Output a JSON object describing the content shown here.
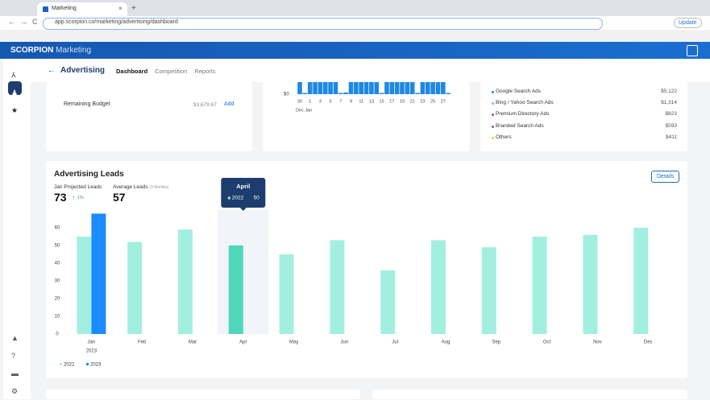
{
  "browser": {
    "tab_title": "Marketing",
    "url": "app.scorpion.co/marketing/advertising/dashboard",
    "update": "Update"
  },
  "app": {
    "brand": "SCORPION",
    "brand_sub": "Marketing"
  },
  "nav": {
    "title": "Advertising",
    "tabs": [
      "Dashboard",
      "Competition",
      "Reports"
    ]
  },
  "budget": {
    "label": "Remaining Budget",
    "value": "$3,679.67",
    "action": "Add"
  },
  "spend_chart": {
    "zero_label": "$0",
    "x_labels": [
      "30",
      "1",
      "3",
      "5",
      "7",
      "9",
      "11",
      "13",
      "15",
      "17",
      "19",
      "21",
      "23",
      "25",
      "27"
    ],
    "month_labels": "Dec Jan",
    "color": "#1e88e5",
    "values": [
      60,
      6,
      60,
      60,
      60,
      60,
      60,
      60,
      6,
      8,
      60,
      60,
      60,
      60,
      60,
      60,
      6,
      60,
      60,
      60,
      60,
      60,
      60,
      6,
      60,
      60,
      60,
      60,
      60,
      6
    ]
  },
  "sources": [
    {
      "name": "Google Search Ads",
      "value": "$5,122",
      "color": "#1e88e5"
    },
    {
      "name": "Bing / Yahoo Search Ads",
      "value": "$1,314",
      "color": "#4dd0e1"
    },
    {
      "name": "Premium Directory Ads",
      "value": "$823",
      "color": "#7e57c2"
    },
    {
      "name": "Branded Search Ads",
      "value": "$593",
      "color": "#ab47bc"
    },
    {
      "name": "Others",
      "value": "$411",
      "color": "#ffca28"
    }
  ],
  "leads": {
    "title": "Advertising Leads",
    "projected_label": "Jan Projected Leads",
    "projected_value": "73",
    "change": "1%",
    "average_label": "Average Leads",
    "average_note": "(3 Months)",
    "average_value": "57",
    "details": "Details"
  },
  "chart_data": {
    "type": "bar",
    "categories": [
      "Jan",
      "Feb",
      "Mar",
      "Apr",
      "May",
      "Jun",
      "Jul",
      "Aug",
      "Sep",
      "Oct",
      "Nov",
      "Dec"
    ],
    "year_label": "2023",
    "series": [
      {
        "name": "2022",
        "color": "#a3efdf",
        "highlight_color": "#4fd6bb",
        "values": [
          55,
          52,
          59,
          50,
          45,
          53,
          36,
          53,
          49,
          55,
          56,
          60
        ]
      },
      {
        "name": "2023",
        "color": "#1a8cff",
        "values": [
          68,
          null,
          null,
          null,
          null,
          null,
          null,
          null,
          null,
          null,
          null,
          null
        ]
      }
    ],
    "ylim": [
      0,
      70
    ],
    "yticks": [
      0,
      10,
      20,
      30,
      40,
      50,
      60
    ],
    "tooltip": {
      "title": "April",
      "index": 3
    }
  }
}
